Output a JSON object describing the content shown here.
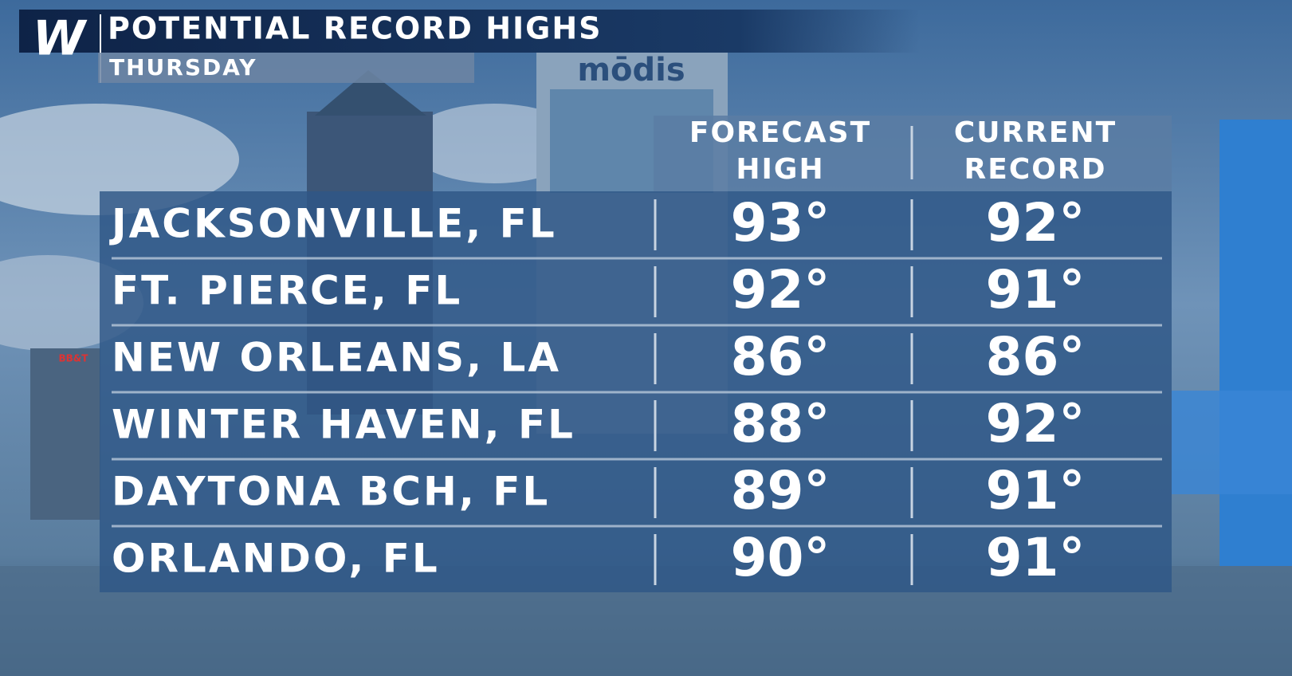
{
  "header": {
    "logo": "W",
    "title": "POTENTIAL RECORD HIGHS",
    "subtitle": "THURSDAY"
  },
  "background": {
    "signs": [
      "mōdis",
      "BB&T"
    ]
  },
  "table": {
    "columns": [
      [
        "FORECAST",
        "HIGH"
      ],
      [
        "CURRENT",
        "RECORD"
      ]
    ],
    "rows": [
      [
        "JACKSONVILLE, FL",
        "93°",
        "92°"
      ],
      [
        "FT. PIERCE, FL",
        "92°",
        "91°"
      ],
      [
        "NEW ORLEANS, LA",
        "86°",
        "86°"
      ],
      [
        "WINTER HAVEN, FL",
        "88°",
        "92°"
      ],
      [
        "DAYTONA BCH, FL",
        "89°",
        "91°"
      ],
      [
        "ORLANDO, FL",
        "90°",
        "91°"
      ]
    ]
  }
}
